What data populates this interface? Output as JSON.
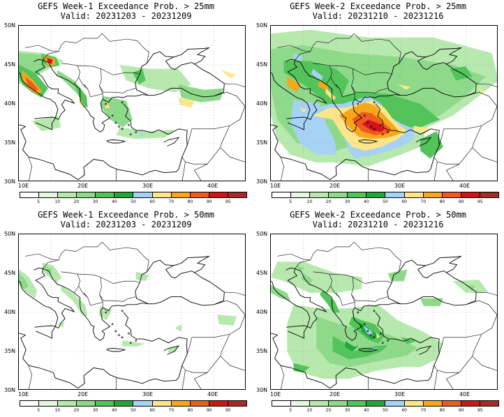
{
  "panels": [
    {
      "title": "GEFS Week-1 Exceedance Prob. > 25mm",
      "valid": "Valid: 20231203 - 20231209",
      "pattern": "w1_25"
    },
    {
      "title": "GEFS Week-2 Exceedance Prob. > 25mm",
      "valid": "Valid: 20231210 - 20231216",
      "pattern": "w2_25"
    },
    {
      "title": "GEFS Week-1 Exceedance Prob. > 50mm",
      "valid": "Valid: 20231203 - 20231209",
      "pattern": "w1_50"
    },
    {
      "title": "GEFS Week-2 Exceedance Prob. > 50mm",
      "valid": "Valid: 20231210 - 20231216",
      "pattern": "w2_50"
    }
  ],
  "lat_labels": [
    "50N",
    "45N",
    "40N",
    "35N",
    "30N"
  ],
  "lon_labels": [
    "10E",
    "20E",
    "30E",
    "40E"
  ],
  "colorbar": {
    "labels": [
      "5",
      "10",
      "20",
      "30",
      "40",
      "50",
      "60",
      "70",
      "80",
      "90",
      "95"
    ],
    "colors": [
      "#ffffff",
      "#e6f6e0",
      "#b7e8ae",
      "#8ed98a",
      "#52c45a",
      "#20a63a",
      "#a6d3f5",
      "#fde68a",
      "#f8a71d",
      "#f05a1d",
      "#d4141b",
      "#a52a2a"
    ]
  },
  "extent": {
    "lon": [
      10,
      45
    ],
    "lat": [
      30,
      50
    ]
  }
}
